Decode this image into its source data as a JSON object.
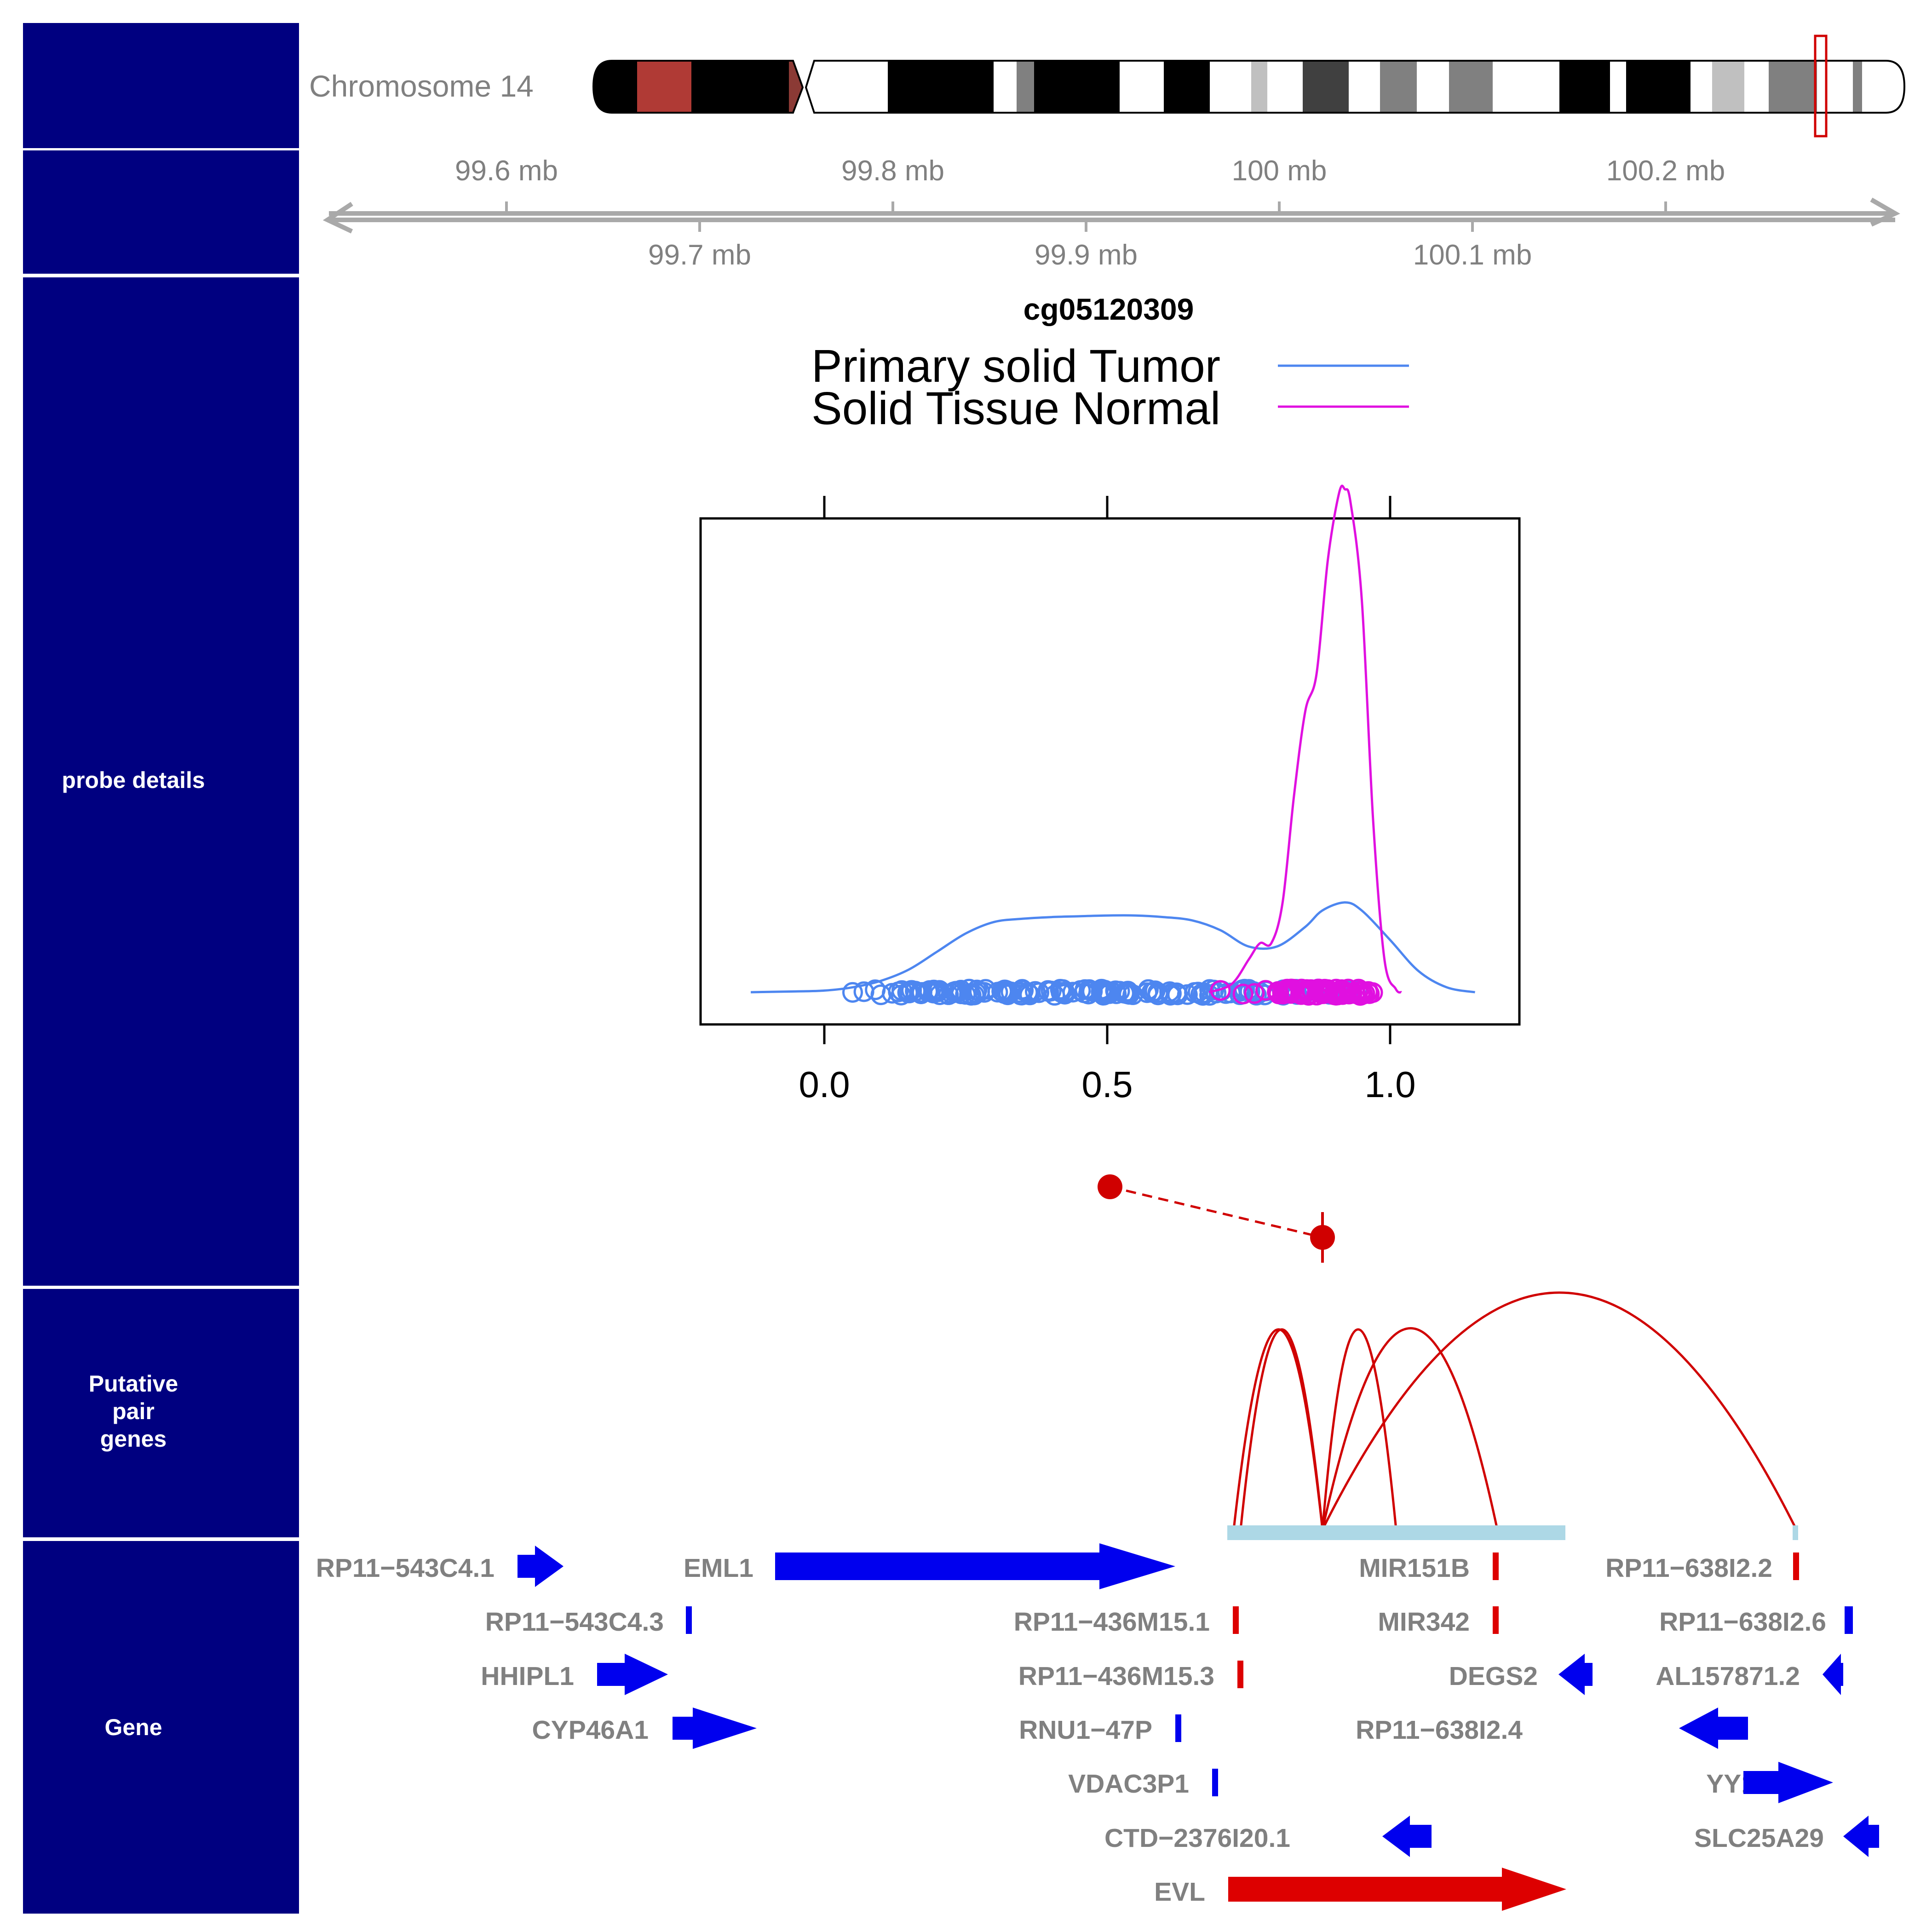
{
  "colors": {
    "panel_bg": "#000080",
    "tumor": "#4d86f0",
    "normal": "#e010e0",
    "axis_gray": "#a9a9a9",
    "link_red": "#d00000",
    "gene_blue": "#0000ee",
    "gene_red": "#dd0000",
    "region_bar": "#add8e6"
  },
  "panels": {
    "probe_details": "probe details",
    "putative_pair_genes": [
      "Putative",
      "pair",
      "genes"
    ],
    "gene": "Gene"
  },
  "chromosome": {
    "label": "Chromosome 14"
  },
  "genome_axis": {
    "upper_ticks": [
      {
        "mb": 99.6,
        "label": "99.6 mb"
      },
      {
        "mb": 99.8,
        "label": "99.8 mb"
      },
      {
        "mb": 100.0,
        "label": "100 mb"
      },
      {
        "mb": 100.2,
        "label": "100.2 mb"
      }
    ],
    "lower_ticks": [
      {
        "mb": 99.7,
        "label": "99.7 mb"
      },
      {
        "mb": 99.9,
        "label": "99.9 mb"
      },
      {
        "mb": 100.1,
        "label": "100.1 mb"
      }
    ]
  },
  "chart_data": {
    "type": "density",
    "title": "cg05120309",
    "xlim": [
      -0.22,
      1.23
    ],
    "x_ticks": [
      0.0,
      0.5,
      1.0
    ],
    "x_tick_labels": [
      "0.0",
      "0.5",
      "1.0"
    ],
    "legend": [
      {
        "name": "Primary solid Tumor",
        "color": "#4d86f0"
      },
      {
        "name": "Solid Tissue Normal",
        "color": "#e010e0"
      }
    ],
    "series": [
      {
        "name": "Primary solid Tumor",
        "x": [
          -0.13,
          -0.05,
          0.0,
          0.05,
          0.1,
          0.15,
          0.2,
          0.25,
          0.3,
          0.35,
          0.4,
          0.45,
          0.5,
          0.55,
          0.6,
          0.65,
          0.7,
          0.75,
          0.8,
          0.85,
          0.88,
          0.92,
          0.95,
          1.0,
          1.05,
          1.1,
          1.15
        ],
        "y": [
          0.0,
          0.005,
          0.01,
          0.03,
          0.07,
          0.14,
          0.25,
          0.36,
          0.43,
          0.45,
          0.46,
          0.465,
          0.47,
          0.47,
          0.46,
          0.44,
          0.38,
          0.28,
          0.28,
          0.4,
          0.5,
          0.55,
          0.5,
          0.32,
          0.13,
          0.03,
          0.0
        ]
      },
      {
        "name": "Solid Tissue Normal",
        "x": [
          0.68,
          0.72,
          0.75,
          0.77,
          0.79,
          0.81,
          0.83,
          0.85,
          0.87,
          0.89,
          0.91,
          0.92,
          0.93,
          0.95,
          0.97,
          0.99,
          1.01,
          1.02
        ],
        "y": [
          0.0,
          0.05,
          0.2,
          0.3,
          0.3,
          0.55,
          1.2,
          1.72,
          1.95,
          2.65,
          3.06,
          3.08,
          3.0,
          2.4,
          1.05,
          0.2,
          0.02,
          0.0
        ]
      }
    ],
    "tumor_points_range": [
      0.05,
      0.95
    ],
    "normal_points_range": [
      0.7,
      0.97
    ]
  },
  "gene_track": {
    "genes": [
      {
        "name": "RP11−543C4.1",
        "color": "blue"
      },
      {
        "name": "EML1",
        "color": "blue"
      },
      {
        "name": "RP11−543C4.3",
        "color": "blue"
      },
      {
        "name": "HHIPL1",
        "color": "blue"
      },
      {
        "name": "CYP46A1",
        "color": "blue"
      },
      {
        "name": "RP11−436M15.1",
        "color": "red"
      },
      {
        "name": "RP11−436M15.3",
        "color": "red"
      },
      {
        "name": "RNU1−47P",
        "color": "blue"
      },
      {
        "name": "VDAC3P1",
        "color": "blue"
      },
      {
        "name": "CTD−2376I20.1",
        "color": "blue"
      },
      {
        "name": "EVL",
        "color": "red"
      },
      {
        "name": "MIR151B",
        "color": "red"
      },
      {
        "name": "MIR342",
        "color": "red"
      },
      {
        "name": "DEGS2",
        "color": "blue"
      },
      {
        "name": "RP11−638I2.2",
        "color": "red"
      },
      {
        "name": "RP11−638I2.6",
        "color": "blue"
      },
      {
        "name": "AL157871.2",
        "color": "blue"
      },
      {
        "name": "RP11−638I2.4",
        "color": "blue"
      },
      {
        "name": "YY1",
        "color": "blue"
      },
      {
        "name": "SLC25A29",
        "color": "blue"
      }
    ]
  }
}
